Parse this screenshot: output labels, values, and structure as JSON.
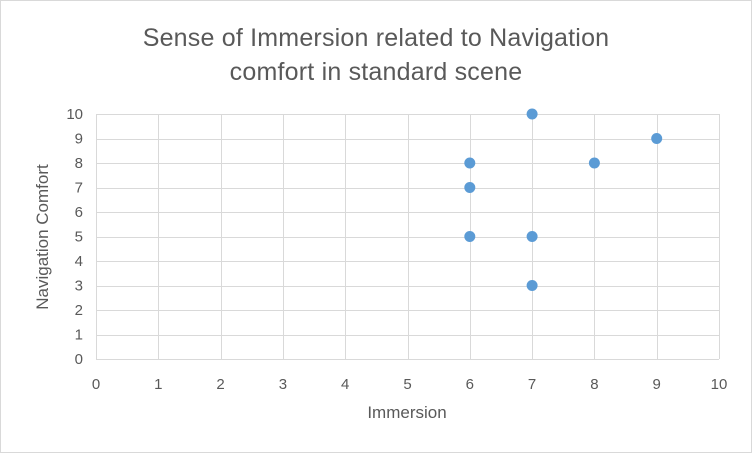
{
  "chart_data": {
    "type": "scatter",
    "title_lines": [
      "Sense of Immersion related to Navigation",
      "comfort in standard scene"
    ],
    "xlabel": "Immersion",
    "ylabel": "Navigation Comfort",
    "xlim": [
      0,
      10
    ],
    "ylim": [
      0,
      10
    ],
    "xticks": [
      "0",
      "1",
      "2",
      "3",
      "4",
      "5",
      "6",
      "7",
      "8",
      "9",
      "10"
    ],
    "yticks": [
      "0",
      "1",
      "2",
      "3",
      "4",
      "5",
      "6",
      "7",
      "8",
      "9",
      "10"
    ],
    "grid": true,
    "legend": "none",
    "series": [
      {
        "points": [
          {
            "x": 7,
            "y": 10
          },
          {
            "x": 9,
            "y": 9
          },
          {
            "x": 6,
            "y": 8
          },
          {
            "x": 8,
            "y": 8
          },
          {
            "x": 6,
            "y": 7
          },
          {
            "x": 6,
            "y": 5
          },
          {
            "x": 7,
            "y": 5
          },
          {
            "x": 7,
            "y": 3
          }
        ]
      }
    ],
    "colors": {
      "marker": "#5b9bd5",
      "grid": "#d9d9d9",
      "text": "#595959"
    }
  }
}
